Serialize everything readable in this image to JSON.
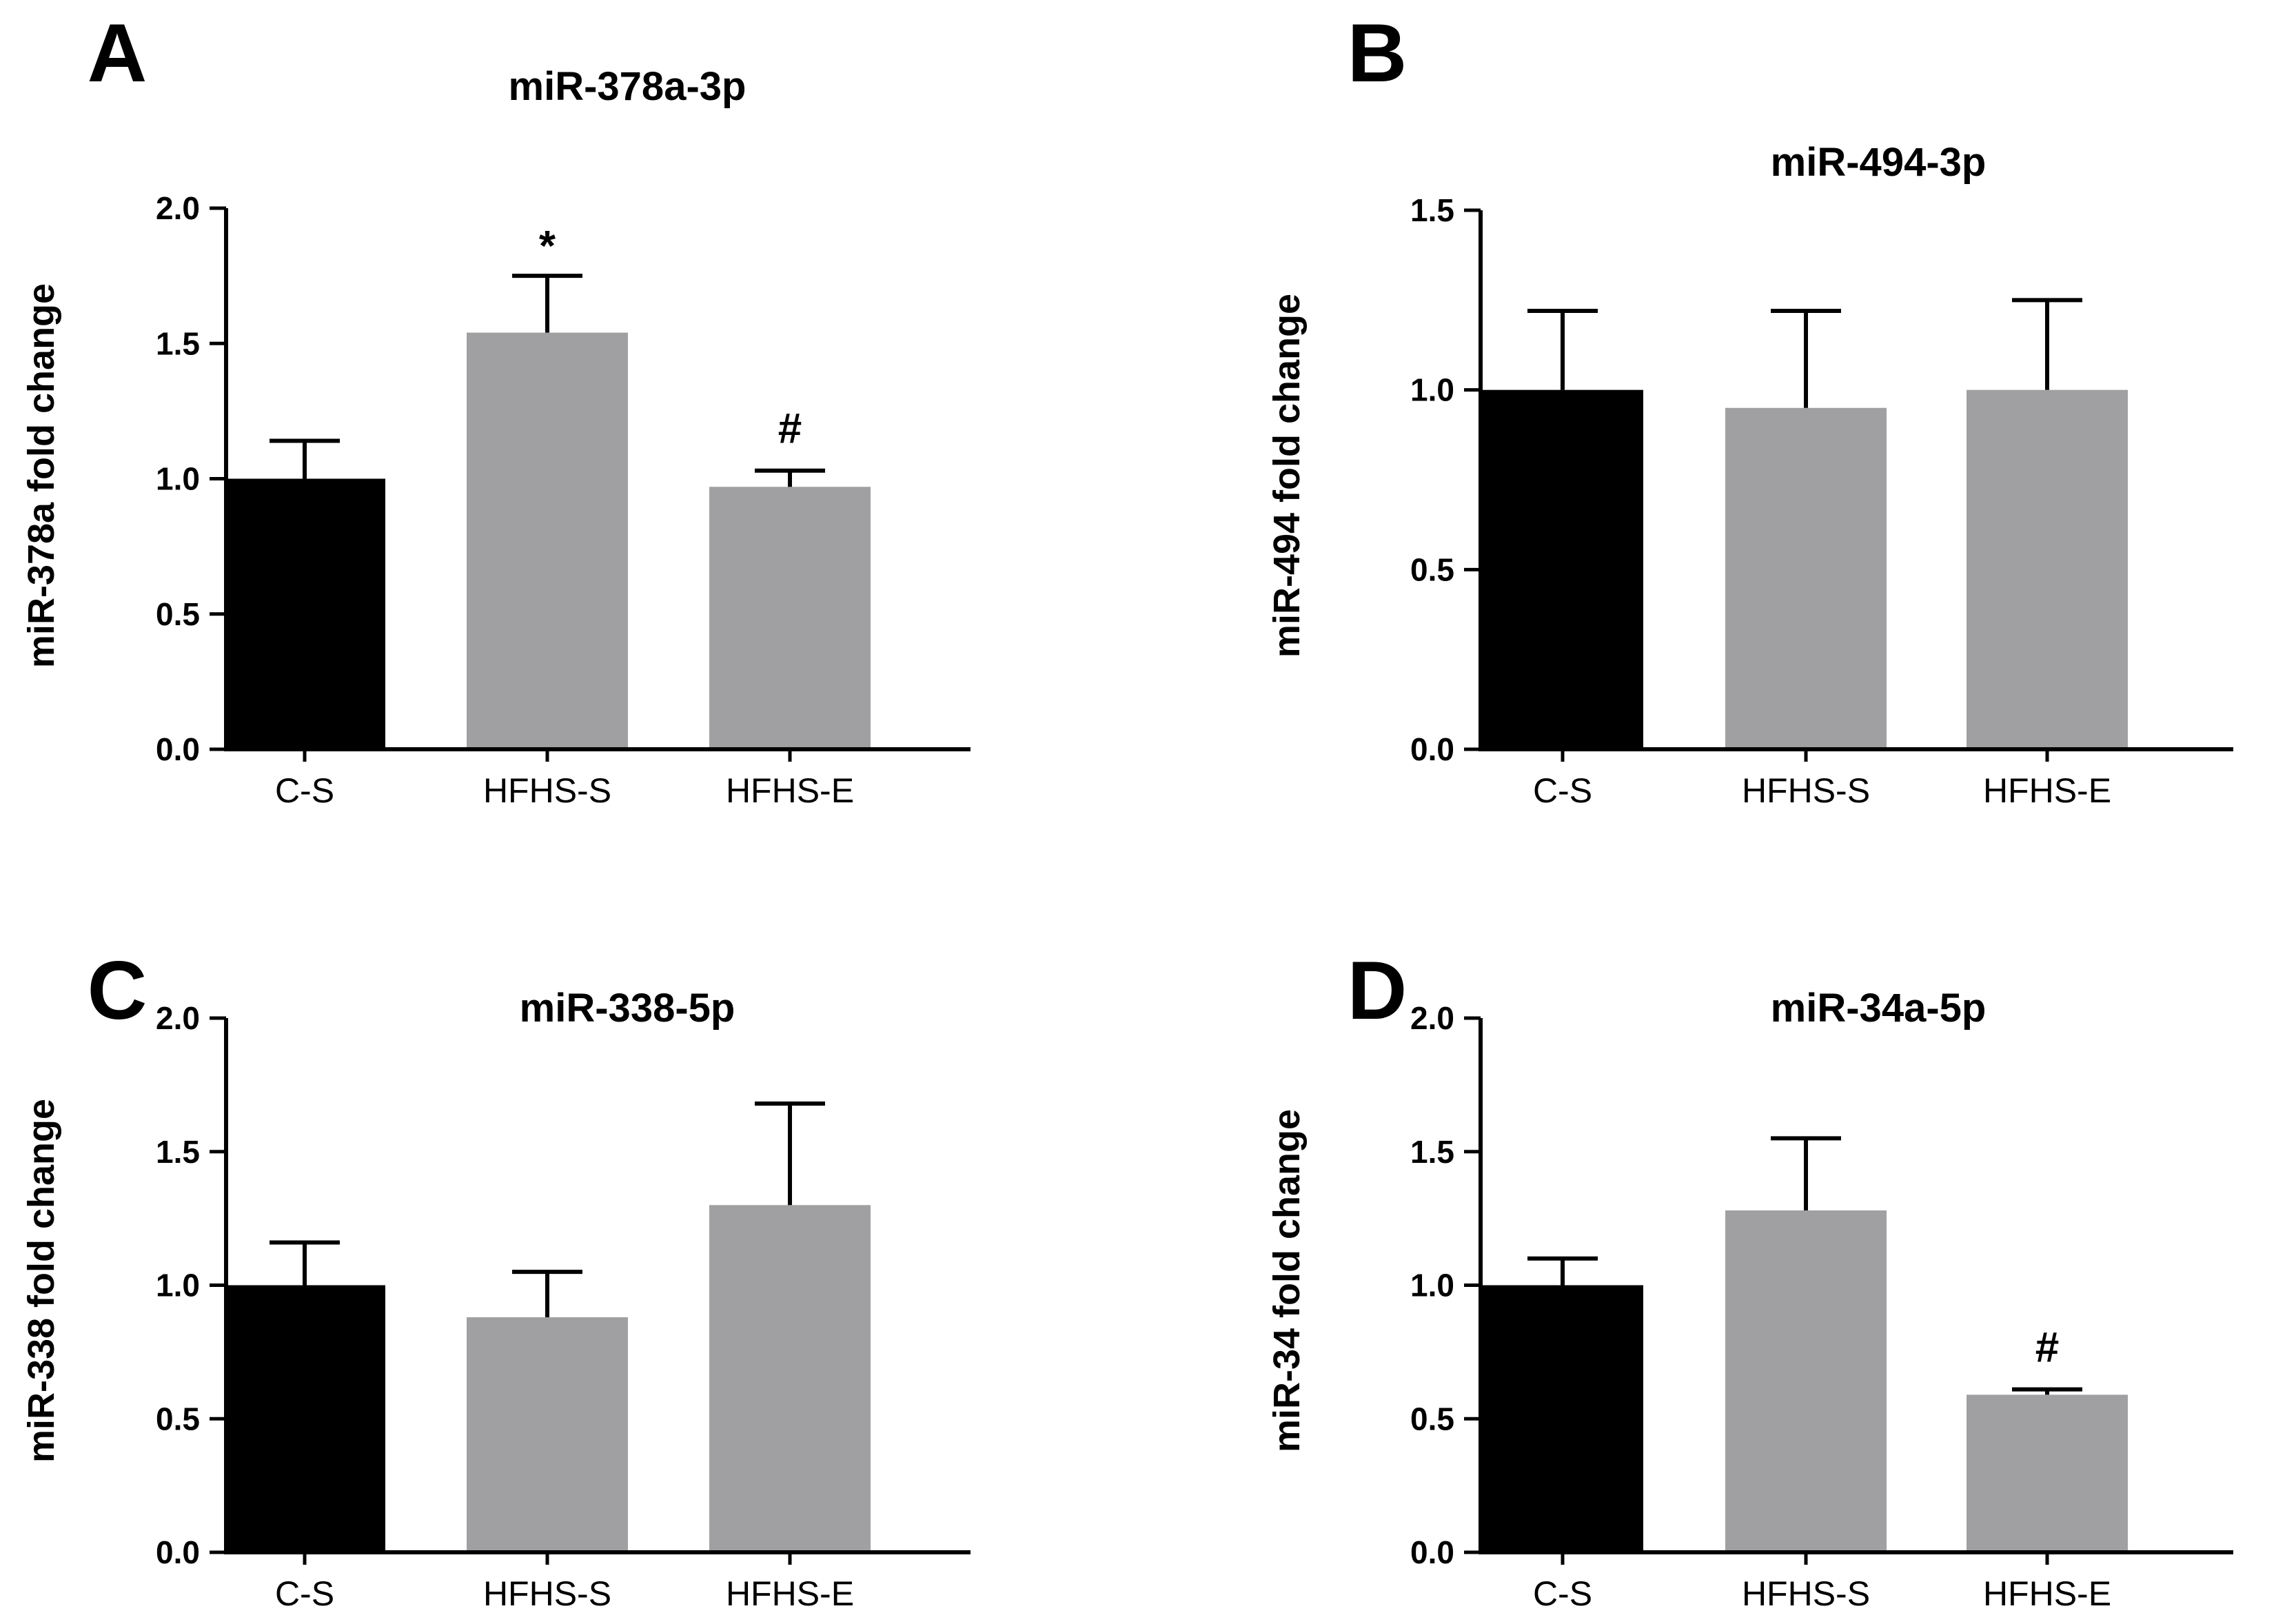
{
  "colors": {
    "control": "#000000",
    "treatment": "#a0a0a2",
    "axis": "#000000"
  },
  "chart_data": [
    {
      "panel": "A",
      "type": "bar",
      "title": "miR-378a-3p",
      "ylabel": "miR-378a fold change",
      "xlabel": "",
      "categories": [
        "C-S",
        "HFHS-S",
        "HFHS-E"
      ],
      "values": [
        1.0,
        1.54,
        0.97
      ],
      "errors": [
        0.14,
        0.21,
        0.06
      ],
      "annotations": [
        "",
        "*",
        "#"
      ],
      "ylim": [
        0,
        2.0
      ],
      "yticks": [
        "0.0",
        "0.5",
        "1.0",
        "1.5",
        "2.0"
      ],
      "ytick_values": [
        0,
        0.5,
        1.0,
        1.5,
        2.0
      ],
      "colors": [
        "control",
        "treatment",
        "treatment"
      ]
    },
    {
      "panel": "B",
      "type": "bar",
      "title": "miR-494-3p",
      "ylabel": "miR-494 fold change",
      "xlabel": "",
      "categories": [
        "C-S",
        "HFHS-S",
        "HFHS-E"
      ],
      "values": [
        1.0,
        0.95,
        1.0
      ],
      "errors": [
        0.22,
        0.27,
        0.25
      ],
      "annotations": [
        "",
        "",
        ""
      ],
      "ylim": [
        0,
        1.5
      ],
      "yticks": [
        "0.0",
        "0.5",
        "1.0",
        "1.5"
      ],
      "ytick_values": [
        0,
        0.5,
        1.0,
        1.5
      ],
      "colors": [
        "control",
        "treatment",
        "treatment"
      ]
    },
    {
      "panel": "C",
      "type": "bar",
      "title": "miR-338-5p",
      "ylabel": "miR-338 fold change",
      "xlabel": "",
      "categories": [
        "C-S",
        "HFHS-S",
        "HFHS-E"
      ],
      "values": [
        1.0,
        0.88,
        1.3
      ],
      "errors": [
        0.16,
        0.17,
        0.38
      ],
      "annotations": [
        "",
        "",
        ""
      ],
      "ylim": [
        0,
        2.0
      ],
      "yticks": [
        "0.0",
        "0.5",
        "1.0",
        "1.5",
        "2.0"
      ],
      "ytick_values": [
        0,
        0.5,
        1.0,
        1.5,
        2.0
      ],
      "colors": [
        "control",
        "treatment",
        "treatment"
      ]
    },
    {
      "panel": "D",
      "type": "bar",
      "title": "miR-34a-5p",
      "ylabel": "miR-34 fold change",
      "xlabel": "",
      "categories": [
        "C-S",
        "HFHS-S",
        "HFHS-E"
      ],
      "values": [
        1.0,
        1.28,
        0.59
      ],
      "errors": [
        0.1,
        0.27,
        0.02
      ],
      "annotations": [
        "",
        "",
        "#"
      ],
      "ylim": [
        0,
        2.0
      ],
      "yticks": [
        "0.0",
        "0.5",
        "1.0",
        "1.5",
        "2.0"
      ],
      "ytick_values": [
        0,
        0.5,
        1.0,
        1.5,
        2.0
      ],
      "colors": [
        "control",
        "treatment",
        "treatment"
      ]
    }
  ]
}
